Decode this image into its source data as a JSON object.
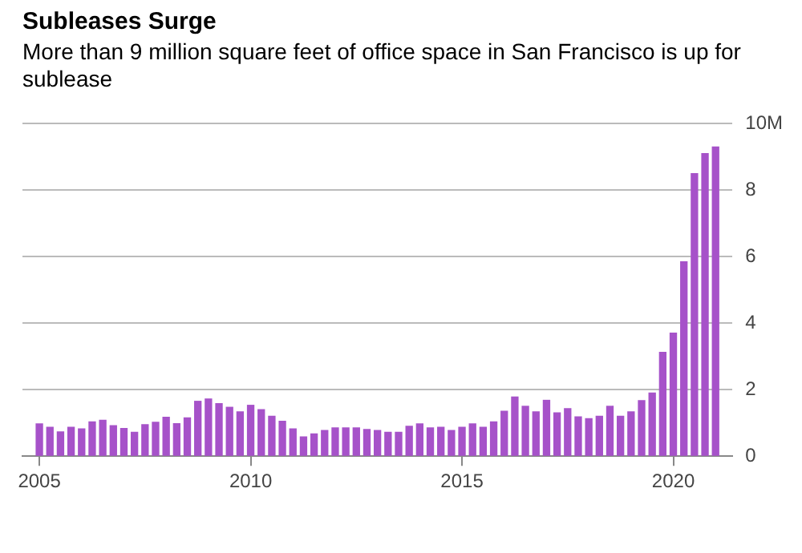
{
  "chart_data": {
    "type": "bar",
    "title": "Subleases Surge",
    "subtitle": "More than 9 million square feet of office space in San Francisco is up for sublease",
    "x": [
      2005,
      2005.25,
      2005.5,
      2005.75,
      2006,
      2006.25,
      2006.5,
      2006.75,
      2007,
      2007.25,
      2007.5,
      2007.75,
      2008,
      2008.25,
      2008.5,
      2008.75,
      2009,
      2009.25,
      2009.5,
      2009.75,
      2010,
      2010.25,
      2010.5,
      2010.75,
      2011,
      2011.25,
      2011.5,
      2011.75,
      2012,
      2012.25,
      2012.5,
      2012.75,
      2013,
      2013.25,
      2013.5,
      2013.75,
      2014,
      2014.25,
      2014.5,
      2014.75,
      2015,
      2015.25,
      2015.5,
      2015.75,
      2016,
      2016.25,
      2016.5,
      2016.75,
      2017,
      2017.25,
      2017.5,
      2017.75,
      2018,
      2018.25,
      2018.5,
      2018.75,
      2019,
      2019.25,
      2019.5,
      2019.75,
      2020,
      2020.25,
      2020.5,
      2020.75,
      2021
    ],
    "values": [
      0.97,
      0.87,
      0.73,
      0.87,
      0.82,
      1.03,
      1.08,
      0.92,
      0.83,
      0.72,
      0.95,
      1.02,
      1.17,
      0.98,
      1.15,
      1.65,
      1.72,
      1.58,
      1.47,
      1.33,
      1.53,
      1.4,
      1.2,
      1.05,
      0.82,
      0.58,
      0.67,
      0.77,
      0.85,
      0.85,
      0.85,
      0.8,
      0.77,
      0.72,
      0.72,
      0.9,
      0.97,
      0.85,
      0.87,
      0.77,
      0.87,
      0.97,
      0.87,
      1.03,
      1.35,
      1.78,
      1.5,
      1.33,
      1.68,
      1.3,
      1.43,
      1.18,
      1.13,
      1.2,
      1.5,
      1.2,
      1.33,
      1.67,
      1.9,
      3.12,
      3.7,
      5.85,
      8.5,
      9.1,
      9.3
    ],
    "color": "#a652c9",
    "xlim": [
      2004.6,
      2021.4
    ],
    "xticks": [
      2005,
      2010,
      2015,
      2020
    ],
    "ylim": [
      0,
      10
    ],
    "yticks": [
      0,
      2,
      4,
      6,
      8,
      {
        "value": 10,
        "label": "10M"
      }
    ],
    "grid": "y"
  }
}
